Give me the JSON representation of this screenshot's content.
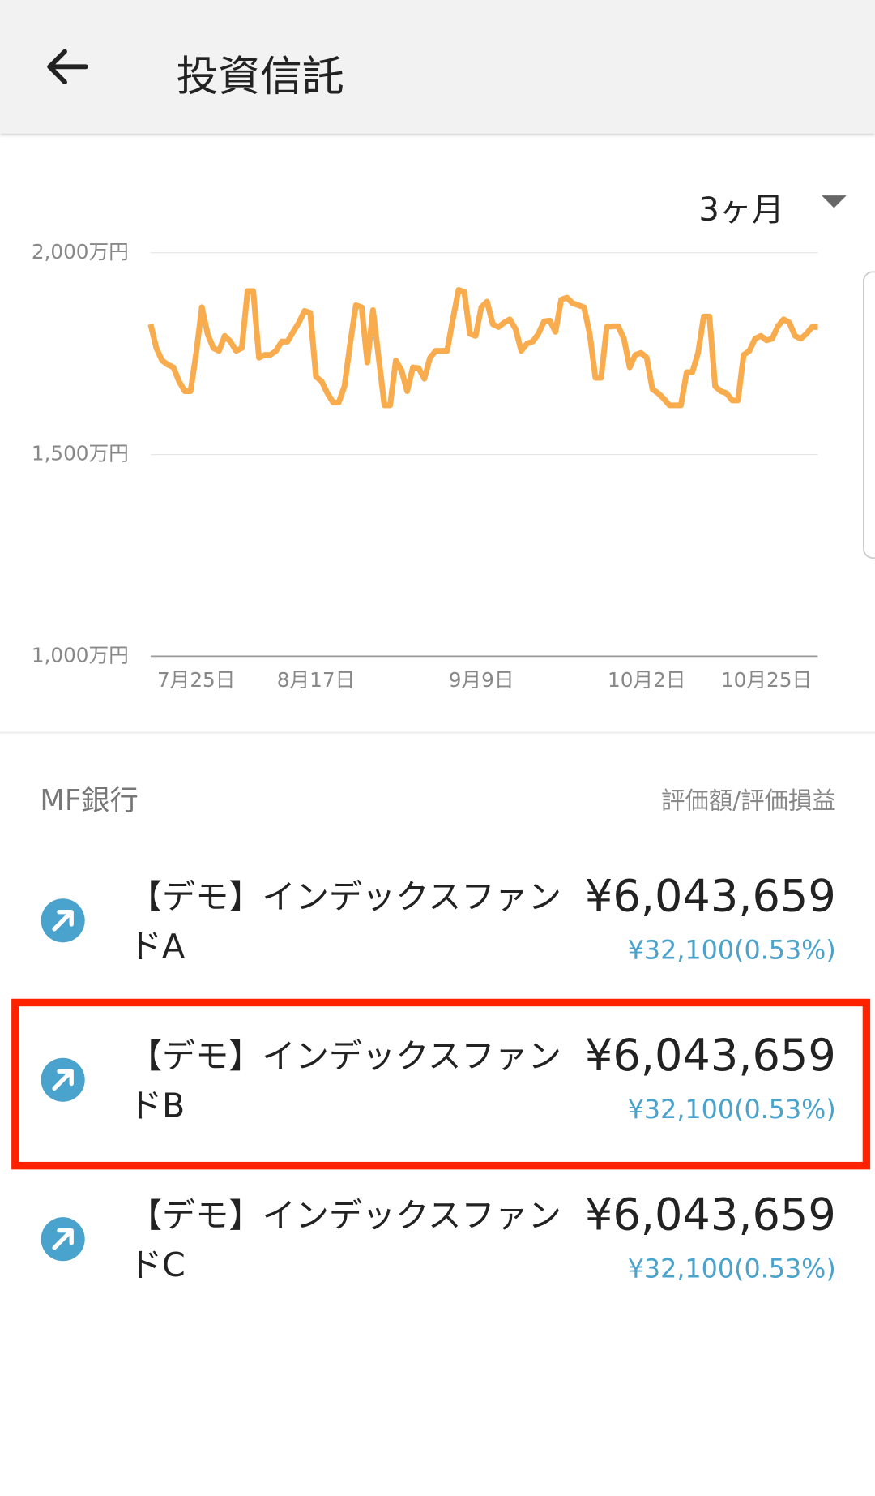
{
  "header": {
    "title": "投資信託"
  },
  "controls": {
    "period": "3ヶ月"
  },
  "chart_data": {
    "type": "line",
    "color": "#f9ac4d",
    "grid": true,
    "ylim": [
      1000,
      2000
    ],
    "yticks": [
      {
        "value": 1000,
        "label": "1,000万円"
      },
      {
        "value": 1500,
        "label": "1,500万円"
      },
      {
        "value": 2000,
        "label": "2,000万円"
      }
    ],
    "categories": [
      null,
      null,
      null,
      null,
      null,
      null,
      null,
      null,
      "7月25日",
      null,
      null,
      null,
      null,
      null,
      null,
      null,
      null,
      null,
      null,
      null,
      null,
      null,
      null,
      null,
      null,
      null,
      null,
      null,
      null,
      "8月17日",
      null,
      null,
      null,
      null,
      null,
      null,
      null,
      null,
      null,
      null,
      null,
      null,
      null,
      null,
      null,
      null,
      null,
      null,
      null,
      null,
      null,
      null,
      null,
      null,
      null,
      null,
      null,
      null,
      "9月9日",
      null,
      null,
      null,
      null,
      null,
      null,
      null,
      null,
      null,
      null,
      null,
      null,
      null,
      null,
      null,
      null,
      null,
      null,
      null,
      null,
      null,
      null,
      null,
      null,
      null,
      null,
      null,
      null,
      "10月2日",
      null,
      null,
      null,
      null,
      null,
      null,
      null,
      null,
      null,
      null,
      null,
      null,
      null,
      null,
      null,
      null,
      null,
      null,
      null,
      null,
      "10月25日",
      null,
      null,
      null,
      null,
      null,
      null,
      null,
      null,
      null
    ],
    "values": [
      1823,
      1764,
      1733,
      1723,
      1716,
      1681,
      1657,
      1657,
      1752,
      1865,
      1799,
      1764,
      1757,
      1794,
      1780,
      1757,
      1764,
      1905,
      1905,
      1740,
      1747,
      1747,
      1757,
      1780,
      1780,
      1804,
      1827,
      1856,
      1851,
      1693,
      1681,
      1652,
      1629,
      1629,
      1669,
      1775,
      1870,
      1865,
      1728,
      1858,
      1740,
      1622,
      1622,
      1733,
      1709,
      1657,
      1716,
      1714,
      1688,
      1740,
      1757,
      1757,
      1757,
      1835,
      1908,
      1903,
      1799,
      1794,
      1865,
      1879,
      1823,
      1816,
      1827,
      1835,
      1811,
      1757,
      1775,
      1780,
      1799,
      1830,
      1832,
      1804,
      1884,
      1889,
      1875,
      1870,
      1865,
      1799,
      1690,
      1690,
      1816,
      1818,
      1818,
      1787,
      1716,
      1747,
      1752,
      1740,
      1662,
      1652,
      1638,
      1622,
      1622,
      1622,
      1704,
      1704,
      1752,
      1842,
      1842,
      1669,
      1657,
      1652,
      1634,
      1634,
      1747,
      1757,
      1787,
      1794,
      1783,
      1787,
      1818,
      1835,
      1827,
      1794,
      1787,
      1799,
      1816,
      1816
    ]
  },
  "account": {
    "name": "MF銀行",
    "column_label": "評価額/評価損益"
  },
  "funds": [
    {
      "name": "【デモ】インデックスファンドA",
      "value": "¥6,043,659",
      "gain": "¥32,100(0.53%)"
    },
    {
      "name": "【デモ】インデックスファンドB",
      "value": "¥6,043,659",
      "gain": "¥32,100(0.53%)"
    },
    {
      "name": "【デモ】インデックスファンドC",
      "value": "¥6,043,659",
      "gain": "¥32,100(0.53%)"
    }
  ]
}
